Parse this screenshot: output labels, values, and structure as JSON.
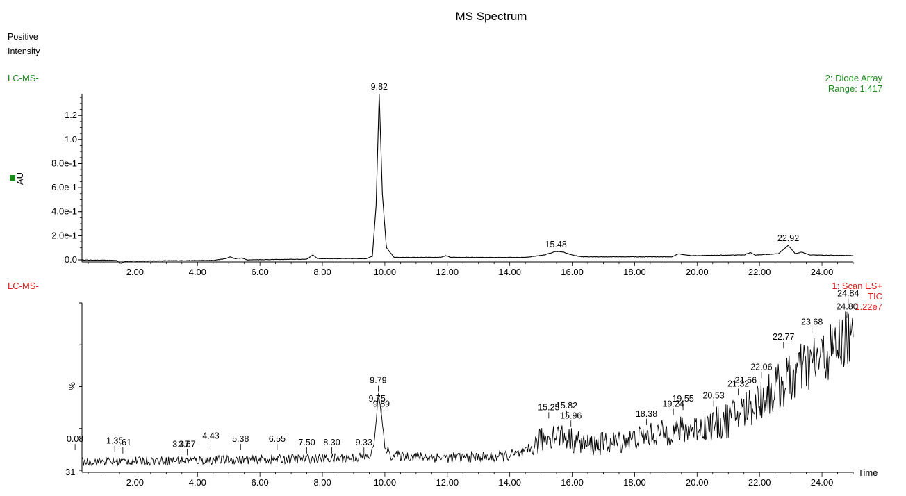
{
  "page": {
    "title": "MS Spectrum",
    "intensity_mode": [
      "Positive",
      "Intensity"
    ]
  },
  "colors": {
    "trace_a_label": "#1a8a1a",
    "trace_b_label": "#e02020",
    "line": "#000000",
    "marker": "#1a8a1a"
  },
  "chart_data": [
    {
      "type": "line",
      "trace_tag": "LC-MS-",
      "info_lines": [
        "2: Diode Array",
        "Range: 1.417"
      ],
      "ylabel": "AU",
      "xlabel": "",
      "xlim": [
        0,
        25
      ],
      "ylim": [
        -0.05,
        1.4
      ],
      "x_ticks": [
        "2.00",
        "4.00",
        "6.00",
        "8.00",
        "10.00",
        "12.00",
        "14.00",
        "16.00",
        "18.00",
        "20.00",
        "22.00",
        "24.00"
      ],
      "y_ticks": [
        {
          "value": 0.0,
          "label": "0.0"
        },
        {
          "value": 0.2,
          "label": "2.0e-1"
        },
        {
          "value": 0.4,
          "label": "4.0e-1"
        },
        {
          "value": 0.6,
          "label": "6.0e-1"
        },
        {
          "value": 0.8,
          "label": "8.0e-1"
        },
        {
          "value": 1.0,
          "label": "1.0"
        },
        {
          "value": 1.2,
          "label": "1.2"
        }
      ],
      "peak_labels": [
        {
          "x": 9.82,
          "y": 1.38,
          "label": "9.82"
        },
        {
          "x": 15.48,
          "y": 0.07,
          "label": "15.48"
        },
        {
          "x": 22.92,
          "y": 0.12,
          "label": "22.92"
        }
      ],
      "series": [
        {
          "points": [
            [
              0.0,
              0.0
            ],
            [
              1.4,
              -0.005
            ],
            [
              1.55,
              -0.03
            ],
            [
              1.7,
              -0.01
            ],
            [
              2.0,
              -0.01
            ],
            [
              4.5,
              -0.005
            ],
            [
              4.9,
              0.01
            ],
            [
              5.05,
              0.025
            ],
            [
              5.2,
              0.01
            ],
            [
              5.4,
              0.015
            ],
            [
              5.6,
              0.0
            ],
            [
              7.5,
              0.005
            ],
            [
              7.7,
              0.04
            ],
            [
              7.85,
              0.01
            ],
            [
              9.4,
              0.01
            ],
            [
              9.6,
              0.03
            ],
            [
              9.72,
              0.45
            ],
            [
              9.82,
              1.38
            ],
            [
              9.92,
              0.55
            ],
            [
              10.05,
              0.1
            ],
            [
              10.3,
              0.02
            ],
            [
              11.8,
              0.02
            ],
            [
              11.95,
              0.035
            ],
            [
              12.1,
              0.02
            ],
            [
              14.5,
              0.02
            ],
            [
              15.1,
              0.04
            ],
            [
              15.48,
              0.07
            ],
            [
              15.7,
              0.065
            ],
            [
              16.0,
              0.04
            ],
            [
              16.3,
              0.025
            ],
            [
              19.2,
              0.025
            ],
            [
              19.4,
              0.05
            ],
            [
              19.8,
              0.035
            ],
            [
              21.5,
              0.04
            ],
            [
              21.7,
              0.06
            ],
            [
              21.85,
              0.04
            ],
            [
              22.6,
              0.05
            ],
            [
              22.92,
              0.12
            ],
            [
              23.15,
              0.05
            ],
            [
              23.35,
              0.065
            ],
            [
              23.6,
              0.04
            ],
            [
              25.0,
              0.035
            ]
          ]
        }
      ]
    },
    {
      "type": "line",
      "trace_tag": "LC-MS-",
      "info_lines": [
        "1: Scan ES+",
        "TIC",
        "1.22e7"
      ],
      "ylabel": "%",
      "xlabel": "Time",
      "y_min_label": "31",
      "xlim": [
        0,
        25
      ],
      "ylim": [
        0,
        100
      ],
      "x_ticks": [
        "2.00",
        "4.00",
        "6.00",
        "8.00",
        "10.00",
        "12.00",
        "14.00",
        "16.00",
        "18.00",
        "20.00",
        "22.00",
        "24.00"
      ],
      "peak_labels": [
        {
          "x": 0.08,
          "y": 12,
          "label": "0.08"
        },
        {
          "x": 1.35,
          "y": 11,
          "label": "1.35"
        },
        {
          "x": 1.61,
          "y": 10,
          "label": "1.61"
        },
        {
          "x": 3.47,
          "y": 9,
          "label": "3.47"
        },
        {
          "x": 3.67,
          "y": 9,
          "label": "3.67"
        },
        {
          "x": 4.43,
          "y": 14,
          "label": "4.43"
        },
        {
          "x": 5.38,
          "y": 12,
          "label": "5.38"
        },
        {
          "x": 6.55,
          "y": 12,
          "label": "6.55"
        },
        {
          "x": 7.5,
          "y": 10,
          "label": "7.50"
        },
        {
          "x": 8.3,
          "y": 10,
          "label": "8.30"
        },
        {
          "x": 9.33,
          "y": 10,
          "label": "9.33"
        },
        {
          "x": 9.75,
          "y": 36,
          "label": "9.75"
        },
        {
          "x": 9.79,
          "y": 47,
          "label": "9.79"
        },
        {
          "x": 9.89,
          "y": 33,
          "label": "9.89"
        },
        {
          "x": 15.25,
          "y": 31,
          "label": "15.25"
        },
        {
          "x": 15.82,
          "y": 32,
          "label": "15.82"
        },
        {
          "x": 15.96,
          "y": 26,
          "label": "15.96"
        },
        {
          "x": 18.38,
          "y": 27,
          "label": "18.38"
        },
        {
          "x": 19.24,
          "y": 33,
          "label": "19.24"
        },
        {
          "x": 19.55,
          "y": 36,
          "label": "19.55"
        },
        {
          "x": 20.53,
          "y": 38,
          "label": "20.53"
        },
        {
          "x": 21.32,
          "y": 45,
          "label": "21.32"
        },
        {
          "x": 21.56,
          "y": 47,
          "label": "21.56"
        },
        {
          "x": 22.06,
          "y": 55,
          "label": "22.06"
        },
        {
          "x": 22.77,
          "y": 73,
          "label": "22.77"
        },
        {
          "x": 23.68,
          "y": 82,
          "label": "23.68"
        },
        {
          "x": 24.8,
          "y": 91,
          "label": "24.80"
        },
        {
          "x": 24.84,
          "y": 99,
          "label": "24.84"
        }
      ],
      "series": [
        {
          "baseline": [
            [
              0.0,
              5
            ],
            [
              2.0,
              5.5
            ],
            [
              4.0,
              6
            ],
            [
              6.0,
              6.5
            ],
            [
              8.0,
              7
            ],
            [
              9.5,
              8
            ],
            [
              9.65,
              15
            ],
            [
              9.75,
              36
            ],
            [
              9.79,
              47
            ],
            [
              9.89,
              33
            ],
            [
              10.0,
              14
            ],
            [
              10.2,
              9
            ],
            [
              12.0,
              7.5
            ],
            [
              13.5,
              8
            ],
            [
              14.5,
              10
            ],
            [
              15.0,
              18
            ],
            [
              15.5,
              22
            ],
            [
              16.0,
              18
            ],
            [
              16.5,
              15
            ],
            [
              17.5,
              17
            ],
            [
              18.5,
              21
            ],
            [
              19.5,
              24
            ],
            [
              20.5,
              27
            ],
            [
              21.0,
              30
            ],
            [
              21.5,
              36
            ],
            [
              22.0,
              42
            ],
            [
              22.5,
              48
            ],
            [
              23.0,
              55
            ],
            [
              23.5,
              62
            ],
            [
              24.0,
              67
            ],
            [
              24.5,
              74
            ],
            [
              24.8,
              80
            ],
            [
              25.0,
              76
            ]
          ],
          "noise_amplitude": [
            [
              0.0,
              2.5
            ],
            [
              9.5,
              3
            ],
            [
              10.5,
              3
            ],
            [
              14.5,
              3.5
            ],
            [
              15.0,
              8
            ],
            [
              16.5,
              7
            ],
            [
              18.0,
              7
            ],
            [
              20.0,
              9
            ],
            [
              21.5,
              12
            ],
            [
              23.0,
              16
            ],
            [
              25.0,
              18
            ]
          ]
        }
      ]
    }
  ]
}
